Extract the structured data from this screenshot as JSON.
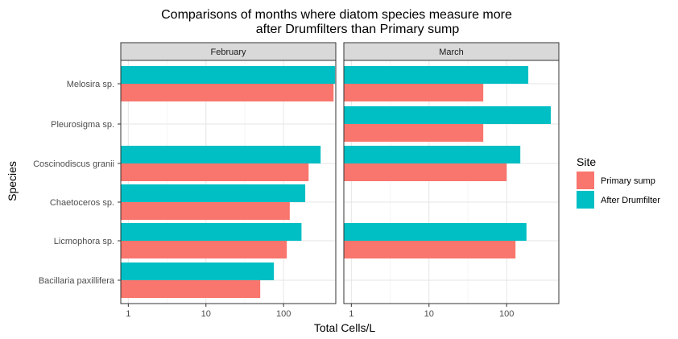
{
  "chart_data": {
    "type": "bar",
    "orientation": "horizontal",
    "title_lines": [
      "Comparisons of months where diatom species measure more",
      "after Drumfilters than Primary sump"
    ],
    "xlabel": "Total Cells/L",
    "ylabel": "Species",
    "x_scale": "log10",
    "xlim": [
      0.8,
      470
    ],
    "x_ticks": [
      1,
      10,
      100
    ],
    "x_tick_labels": [
      "1",
      "10",
      "100"
    ],
    "grid": true,
    "legend_position": "right",
    "legend": {
      "title": "Site",
      "entries": [
        {
          "label": "Primary sump",
          "color": "#F8766D"
        },
        {
          "label": "After Drumfilter",
          "color": "#00BFC4"
        }
      ]
    },
    "categories": [
      "Melosira sp.",
      "Pleurosigma sp.",
      "Coscinodiscus granii",
      "Chaetoceros sp.",
      "Licmophora sp.",
      "Bacillaria paxillifera"
    ],
    "panels": [
      {
        "label": "February",
        "series": [
          {
            "name": "Primary sump",
            "color": "#F8766D",
            "values": [
              440,
              null,
              210,
              120,
              110,
              50
            ]
          },
          {
            "name": "After Drumfilter",
            "color": "#00BFC4",
            "values": [
              460,
              null,
              300,
              190,
              170,
              75
            ]
          }
        ]
      },
      {
        "label": "March",
        "series": [
          {
            "name": "Primary sump",
            "color": "#F8766D",
            "values": [
              50,
              50,
              100,
              null,
              130,
              null
            ]
          },
          {
            "name": "After Drumfilter",
            "color": "#00BFC4",
            "values": [
              190,
              370,
              150,
              null,
              180,
              null
            ]
          }
        ]
      }
    ]
  }
}
